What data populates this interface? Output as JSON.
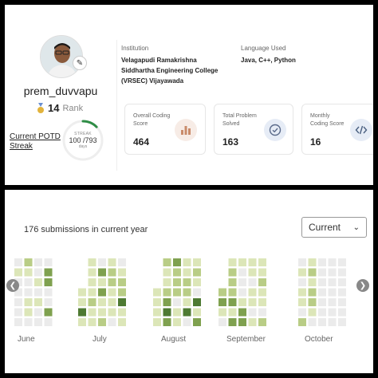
{
  "profile": {
    "username": "prem_duvvapu",
    "rank_value": "14",
    "rank_label": "Rank",
    "potd_label": "Current POTD Streak",
    "streak": {
      "caption": "STREAK",
      "current": 100,
      "total": 793,
      "text": "100 /793",
      "unit": "days",
      "progress_fraction": 0.126
    }
  },
  "info": {
    "institution_label": "Institution",
    "institution_lines": [
      "Velagapudi Ramakrishna",
      "Siddhartha Engineering College",
      "(VRSEC) Vijayawada"
    ],
    "language_label": "Language Used",
    "language_value": "Java, C++, Python"
  },
  "stats": [
    {
      "label_lines": [
        "Overall Coding",
        "Score"
      ],
      "value": "464",
      "icon": "bar-chart-icon",
      "icon_bg": "#f7ece6",
      "icon_color": "#c98b6a"
    },
    {
      "label_lines": [
        "Total Problem",
        "Solved"
      ],
      "value": "163",
      "icon": "check-circle-icon",
      "icon_bg": "#e6ecf6",
      "icon_color": "#5a6a8a"
    },
    {
      "label_lines": [
        "Monthly",
        "Coding Score"
      ],
      "value": "16",
      "icon": "code-icon",
      "icon_bg": "#e6ecf6",
      "icon_color": "#4a6080"
    }
  ],
  "submissions": {
    "title": "176 submissions in current year",
    "year_select": "Current",
    "months": [
      "June",
      "July",
      "August",
      "September",
      "October"
    ],
    "colors": {
      "empty": "#ebebeb",
      "level1": "#dce6b8",
      "level2": "#b9cd86",
      "level3": "#7fa14f",
      "level4": "#4e7a32"
    }
  }
}
